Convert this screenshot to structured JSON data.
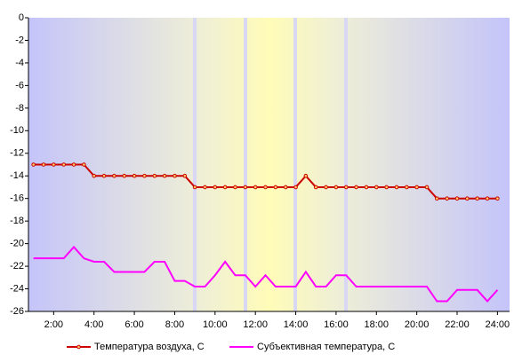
{
  "chart_data": {
    "type": "line",
    "x": [
      1,
      1.5,
      2,
      2.5,
      3,
      3.5,
      4,
      4.5,
      5,
      5.5,
      6,
      6.5,
      7,
      7.5,
      8,
      8.5,
      9,
      9.5,
      10,
      10.5,
      11,
      11.5,
      12,
      12.5,
      13,
      13.5,
      14,
      14.5,
      15,
      15.5,
      16,
      16.5,
      17,
      17.5,
      18,
      18.5,
      19,
      19.5,
      20,
      20.5,
      21,
      21.5,
      22,
      22.5,
      23,
      23.5,
      24
    ],
    "series": [
      {
        "name": "Температура воздуха, С",
        "color": "#cc0000",
        "markers": true,
        "values": [
          -13,
          -13,
          -13,
          -13,
          -13,
          -13,
          -14,
          -14,
          -14,
          -14,
          -14,
          -14,
          -14,
          -14,
          -14,
          -14,
          -15,
          -15,
          -15,
          -15,
          -15,
          -15,
          -15,
          -15,
          -15,
          -15,
          -15,
          -14,
          -15,
          -15,
          -15,
          -15,
          -15,
          -15,
          -15,
          -15,
          -15,
          -15,
          -15,
          -15,
          -16,
          -16,
          -16,
          -16,
          -16,
          -16,
          -16
        ]
      },
      {
        "name": "Субъективная температура, С",
        "color": "#ff00ff",
        "markers": false,
        "values": [
          -21.3,
          -21.3,
          -21.3,
          -21.3,
          -20.3,
          -21.3,
          -21.6,
          -21.6,
          -22.5,
          -22.5,
          -22.5,
          -22.5,
          -21.6,
          -21.6,
          -23.3,
          -23.3,
          -23.8,
          -23.8,
          -22.8,
          -21.6,
          -22.8,
          -22.8,
          -23.8,
          -22.8,
          -23.8,
          -23.8,
          -23.8,
          -22.5,
          -23.8,
          -23.8,
          -22.8,
          -22.8,
          -23.8,
          -23.8,
          -23.8,
          -23.8,
          -23.8,
          -23.8,
          -23.8,
          -23.8,
          -25.1,
          -25.1,
          -24.1,
          -24.1,
          -24.1,
          -25.1,
          -24.1
        ]
      }
    ],
    "xlim": [
      0.75,
      24.6
    ],
    "xticks": [
      {
        "value": 2,
        "label": "2:00"
      },
      {
        "value": 4,
        "label": "4:00"
      },
      {
        "value": 6,
        "label": "6:00"
      },
      {
        "value": 8,
        "label": "8:00"
      },
      {
        "value": 10,
        "label": "10:00"
      },
      {
        "value": 12,
        "label": "12:00"
      },
      {
        "value": 14,
        "label": "14:00"
      },
      {
        "value": 16,
        "label": "16:00"
      },
      {
        "value": 18,
        "label": "18:00"
      },
      {
        "value": 20,
        "label": "20:00"
      },
      {
        "value": 22,
        "label": "22:00"
      },
      {
        "value": 24,
        "label": "24:00"
      }
    ],
    "ylim": [
      -26,
      0
    ],
    "yticks": [
      0,
      -2,
      -4,
      -6,
      -8,
      -10,
      -12,
      -14,
      -16,
      -18,
      -20,
      -22,
      -24,
      -26
    ]
  }
}
